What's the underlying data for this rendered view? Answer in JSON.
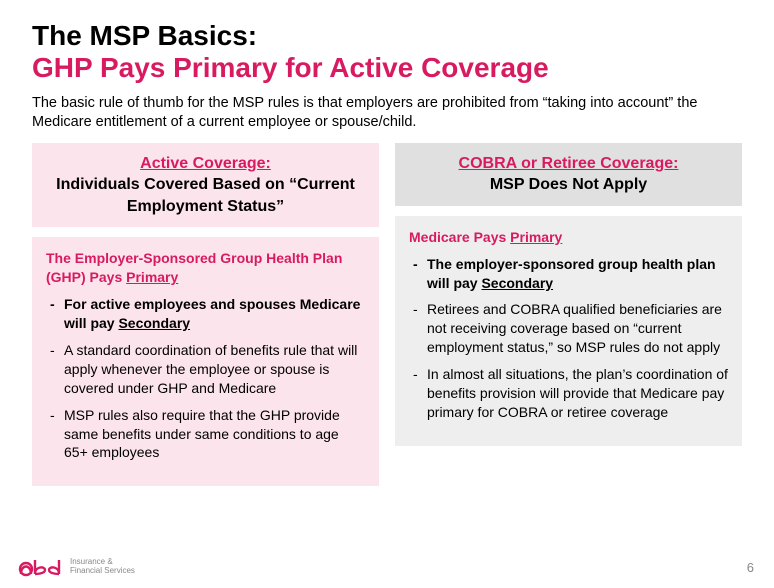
{
  "title": {
    "line1": "The MSP Basics:",
    "line2": "GHP Pays Primary for Active Coverage"
  },
  "intro": "The basic rule of thumb for the MSP rules is that employers are prohibited from “taking into account” the Medicare entitlement of a current employee or spouse/child.",
  "left": {
    "header": {
      "h1": "Active Coverage:",
      "h2": "Individuals Covered Based on “Current Employment Status”"
    },
    "body": {
      "title_pre": "The Employer-Sponsored Group Health Plan (GHP) Pays ",
      "title_u": "Primary",
      "items": [
        {
          "bold": true,
          "pre": "For active employees and spouses Medicare will pay ",
          "u": "Secondary",
          "post": ""
        },
        {
          "bold": false,
          "pre": "A standard coordination of benefits rule that will apply whenever the employee or spouse is covered under GHP and Medicare",
          "u": "",
          "post": ""
        },
        {
          "bold": false,
          "pre": "MSP rules also require that the GHP provide same benefits under same conditions to age 65+ employees",
          "u": "",
          "post": ""
        }
      ]
    }
  },
  "right": {
    "header": {
      "h1": "COBRA or Retiree Coverage:",
      "h2": "MSP Does Not Apply"
    },
    "body": {
      "title_pre": "Medicare Pays ",
      "title_u": "Primary",
      "items": [
        {
          "bold": true,
          "pre": "The employer-sponsored group health plan will pay ",
          "u": "Secondary",
          "post": ""
        },
        {
          "bold": false,
          "pre": "Retirees and COBRA qualified beneficiaries are not receiving coverage based on “current employment status,” so MSP rules do not apply",
          "u": "",
          "post": ""
        },
        {
          "bold": false,
          "pre": "In almost all situations, the plan’s coordination of benefits provision will provide that Medicare pay primary for COBRA or retiree coverage",
          "u": "",
          "post": ""
        }
      ]
    }
  },
  "footer": {
    "logo_line1": "Insurance &",
    "logo_line2": "Financial Services",
    "page": "6"
  },
  "colors": {
    "pink": "#d81b60",
    "pink_bg": "#fce4ec",
    "gray_bg_header": "#e0e0e0",
    "gray_bg_body": "#eeeeee",
    "text": "#000000",
    "muted": "#888888"
  }
}
